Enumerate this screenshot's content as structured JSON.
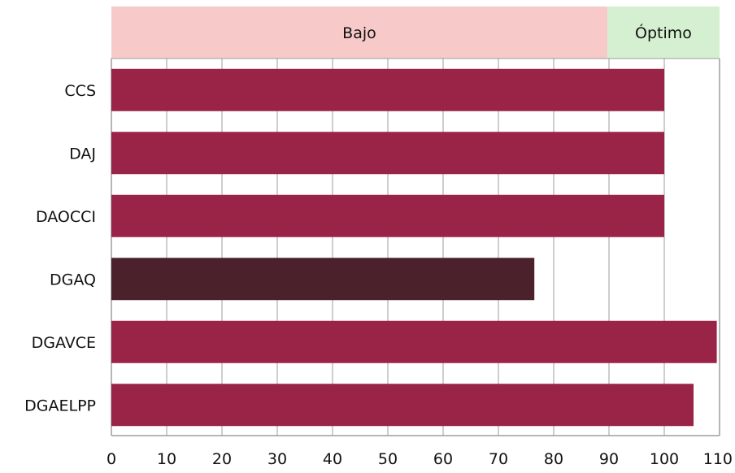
{
  "chart_data": {
    "type": "bar",
    "orientation": "horizontal",
    "categories": [
      "CCS",
      "DAJ",
      "DAOCCI",
      "DGAQ",
      "DGAVCE",
      "DGAELPP"
    ],
    "values": [
      100,
      100,
      100,
      76.5,
      109.5,
      105.3
    ],
    "bar_colors": [
      "#9a2447",
      "#9a2447",
      "#9a2447",
      "#4b212b",
      "#9a2447",
      "#9a2447"
    ],
    "xlim": [
      0,
      110
    ],
    "x_ticks": [
      "0",
      "10",
      "20",
      "30",
      "40",
      "50",
      "60",
      "70",
      "80",
      "90",
      "100",
      "110"
    ],
    "grid": "vertical",
    "bands": [
      {
        "label": "Bajo",
        "from": 0,
        "to": 89.7,
        "color": "#f7c9c9"
      },
      {
        "label": "Óptimo",
        "from": 89.7,
        "to": 110,
        "color": "#d5f0d0"
      }
    ],
    "title": "",
    "xlabel": "",
    "ylabel": ""
  }
}
